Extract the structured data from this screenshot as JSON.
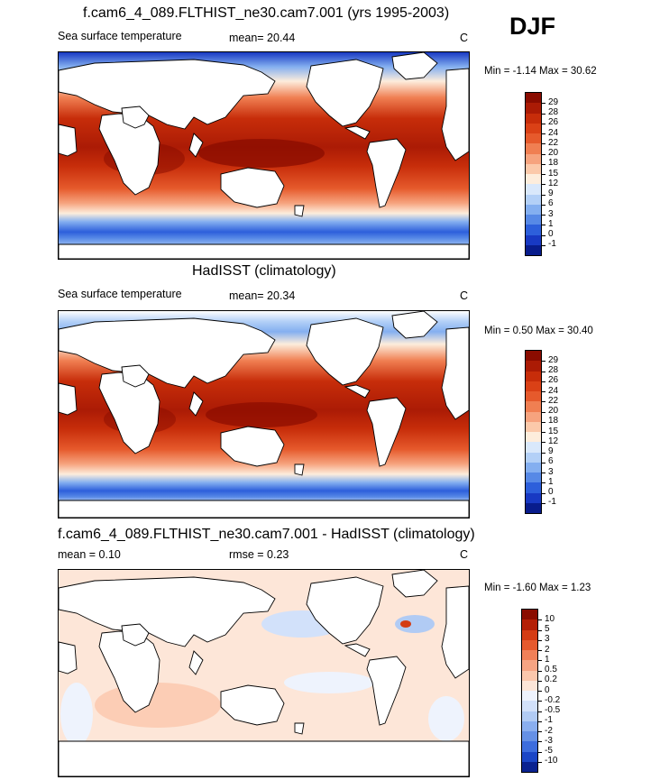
{
  "season": "DJF",
  "panels": [
    {
      "title": "f.cam6_4_089.FLTHIST_ne30.cam7.001 (yrs 1995-2003)",
      "left_label": "Sea surface temperature",
      "center_label": "mean=  20.44",
      "right_label": "C",
      "minmax": "Min =  -1.14 Max =  30.62",
      "colorbar": {
        "labels": [
          "29",
          "28",
          "26",
          "24",
          "22",
          "20",
          "18",
          "15",
          "12",
          "9",
          "6",
          "3",
          "1",
          "0",
          "-1"
        ],
        "colors": [
          "#8a0c00",
          "#ab1b05",
          "#c72d0a",
          "#da4116",
          "#e65a2c",
          "#f07f52",
          "#f6a37e",
          "#fbc9aa",
          "#fdeddc",
          "#d9e8fb",
          "#b3d0f7",
          "#84aff0",
          "#5789e6",
          "#2d5fdb",
          "#1839c3",
          "#081c8c"
        ]
      }
    },
    {
      "title": "HadISST (climatology)",
      "left_label": "Sea surface temperature",
      "center_label": "mean=  20.34",
      "right_label": "C",
      "minmax": "Min =   0.50 Max =  30.40",
      "colorbar": {
        "labels": [
          "29",
          "28",
          "26",
          "24",
          "22",
          "20",
          "18",
          "15",
          "12",
          "9",
          "6",
          "3",
          "1",
          "0",
          "-1"
        ],
        "colors": [
          "#8a0c00",
          "#ab1b05",
          "#c72d0a",
          "#da4116",
          "#e65a2c",
          "#f07f52",
          "#f6a37e",
          "#fbc9aa",
          "#fdeddc",
          "#d9e8fb",
          "#b3d0f7",
          "#84aff0",
          "#5789e6",
          "#2d5fdb",
          "#1839c3",
          "#081c8c"
        ]
      }
    },
    {
      "title": "f.cam6_4_089.FLTHIST_ne30.cam7.001 - HadISST (climatology)",
      "left_label": "mean =   0.10",
      "center_label": "rmse =   0.23",
      "right_label": "C",
      "minmax": "Min =  -1.60 Max =   1.23",
      "colorbar": {
        "labels": [
          "10",
          "5",
          "3",
          "2",
          "1",
          "0.5",
          "0.2",
          "0",
          "-0.2",
          "-0.5",
          "-1",
          "-2",
          "-3",
          "-5",
          "-10"
        ],
        "colors": [
          "#8a0c00",
          "#b41f06",
          "#d43c14",
          "#e55a2e",
          "#f08058",
          "#f6a483",
          "#fbc7ac",
          "#fde6d8",
          "#eef3fd",
          "#d2e1fa",
          "#b1cbf4",
          "#8aaeee",
          "#6590e5",
          "#3d6ddd",
          "#1b46c6",
          "#0a2290"
        ]
      }
    }
  ]
}
